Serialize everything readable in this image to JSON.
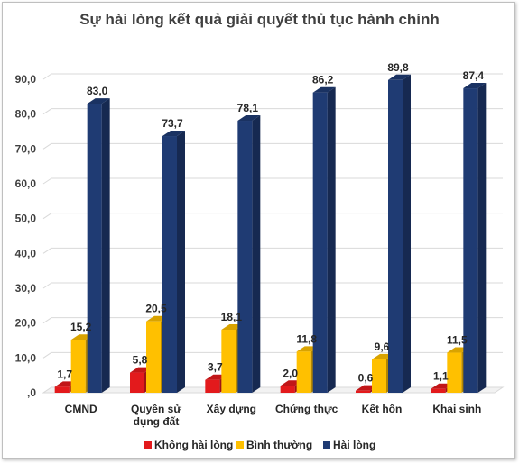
{
  "chart_data": {
    "type": "bar",
    "title": "Sự hài lòng kết quả giải quyết thủ tục hành chính",
    "categories": [
      [
        "CMND"
      ],
      [
        "Quyền sử",
        "dụng đất"
      ],
      [
        "Xây dựng"
      ],
      [
        "Chứng thực"
      ],
      [
        "Kết hôn"
      ],
      [
        "Khai sinh"
      ]
    ],
    "series": [
      {
        "name": "Không hài lòng",
        "color": "#e31a1c",
        "values": [
          1.7,
          5.8,
          3.7,
          2.0,
          0.6,
          1.1
        ],
        "labels": [
          "1,7",
          "5,8",
          "3,7",
          "2,0",
          "0,6",
          "1,1"
        ]
      },
      {
        "name": "Bình thường",
        "color": "#ffc000",
        "values": [
          15.2,
          20.5,
          18.1,
          11.8,
          9.6,
          11.5
        ],
        "labels": [
          "15,2",
          "20,5",
          "18,1",
          "11,8",
          "9,6",
          "11,5"
        ]
      },
      {
        "name": "Hài lòng",
        "color": "#1f3b73",
        "values": [
          83.0,
          73.7,
          78.1,
          86.2,
          89.8,
          87.4
        ],
        "labels": [
          "83,0",
          "73,7",
          "78,1",
          "86,2",
          "89,8",
          "87,4"
        ]
      }
    ],
    "yticks": [
      0,
      10,
      20,
      30,
      40,
      50,
      60,
      70,
      80,
      90
    ],
    "ytick_labels": [
      ",0",
      "10,0",
      "20,0",
      "30,0",
      "40,0",
      "50,0",
      "60,0",
      "70,0",
      "80,0",
      "90,0"
    ],
    "ylim": [
      0,
      90
    ],
    "grid": true,
    "legend_position": "bottom"
  }
}
